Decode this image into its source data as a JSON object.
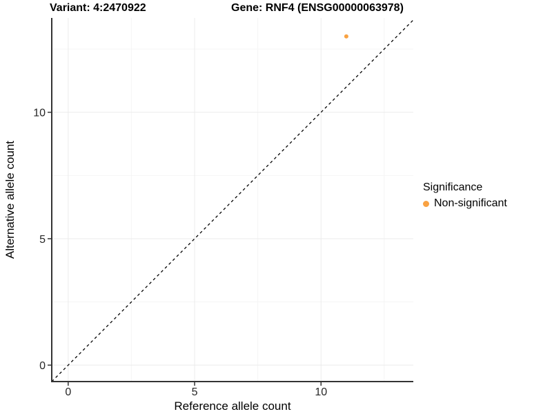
{
  "header": {
    "variant_title": "Variant: 4:2470922",
    "gene_title": "Gene: RNF4 (ENSG00000063978)"
  },
  "chart_data": {
    "type": "scatter",
    "xlabel": "Reference allele count",
    "ylabel": "Alternative allele count",
    "xlim": [
      -0.65,
      13.65
    ],
    "ylim": [
      -0.65,
      13.73
    ],
    "xticks": [
      0,
      5,
      10
    ],
    "yticks": [
      0,
      5,
      10
    ],
    "x_minor_ticks": [
      2.5,
      7.5,
      12.5
    ],
    "y_minor_ticks": [
      2.5,
      7.5,
      12.5
    ],
    "grid": true,
    "series": [
      {
        "name": "Non-significant",
        "color": "#F9A242",
        "points": [
          {
            "x": 11,
            "y": 13
          }
        ]
      }
    ],
    "identity_line": {
      "style": "dashed",
      "slope": 1,
      "intercept": 0,
      "color": "#000000"
    },
    "legend": {
      "position": "right",
      "title": "Significance",
      "entries": [
        {
          "label": "Non-significant",
          "color": "#F9A242"
        }
      ]
    },
    "colors": {
      "grid_major": "#EBEBEB",
      "grid_minor": "#F5F5F5",
      "axis_line": "#333333",
      "tick_label": "#262626",
      "axis_title": "#000000"
    }
  }
}
